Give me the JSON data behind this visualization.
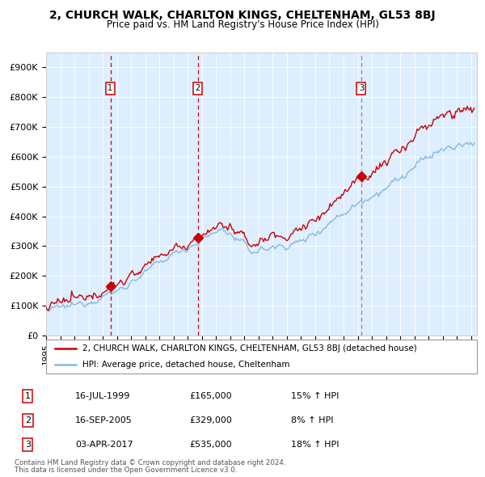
{
  "title": "2, CHURCH WALK, CHARLTON KINGS, CHELTENHAM, GL53 8BJ",
  "subtitle": "Price paid vs. HM Land Registry's House Price Index (HPI)",
  "line1_label": "2, CHURCH WALK, CHARLTON KINGS, CHELTENHAM, GL53 8BJ (detached house)",
  "line2_label": "HPI: Average price, detached house, Cheltenham",
  "line1_color": "#cc0000",
  "line2_color": "#88b8e0",
  "bg_color": "#ddeeff",
  "sale_dates": [
    "1999-07-16",
    "2005-09-16",
    "2017-04-03"
  ],
  "sale_prices": [
    165000,
    329000,
    535000
  ],
  "sale_labels": [
    "1",
    "2",
    "3"
  ],
  "vline_colors_red": [
    "#cc0000",
    "#cc0000"
  ],
  "vline_color_gray": "#888888",
  "ylim": [
    0,
    950000
  ],
  "ytick_vals": [
    0,
    100000,
    200000,
    300000,
    400000,
    500000,
    600000,
    700000,
    800000,
    900000
  ],
  "ytick_labels": [
    "£0",
    "£100K",
    "£200K",
    "£300K",
    "£400K",
    "£500K",
    "£600K",
    "£700K",
    "£800K",
    "£900K"
  ],
  "footer_line1": "Contains HM Land Registry data © Crown copyright and database right 2024.",
  "footer_line2": "This data is licensed under the Open Government Licence v3.0.",
  "row_data": [
    [
      "1",
      "16-JUL-1999",
      "£165,000",
      "15% ↑ HPI"
    ],
    [
      "2",
      "16-SEP-2005",
      "£329,000",
      "8% ↑ HPI"
    ],
    [
      "3",
      "03-APR-2017",
      "£535,000",
      "18% ↑ HPI"
    ]
  ]
}
